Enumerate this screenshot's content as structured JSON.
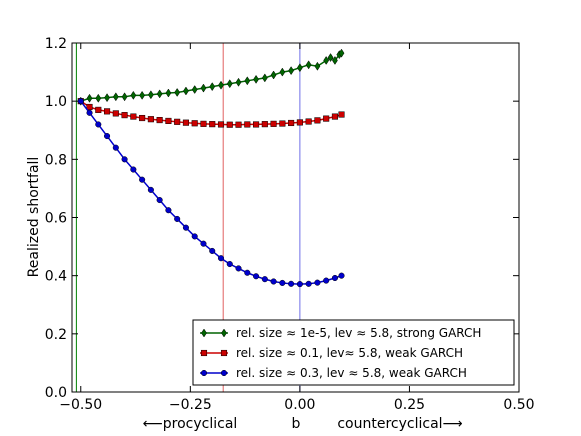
{
  "chart_data": {
    "type": "line",
    "title": "",
    "ylabel": "Realized shortfall",
    "xlabel_left": "⟵procyclical",
    "xlabel_center": "b",
    "xlabel_right": "countercyclical⟶",
    "xlim": [
      -0.52,
      0.5
    ],
    "ylim": [
      0.0,
      1.2
    ],
    "xticks": [
      -0.5,
      -0.25,
      0.0,
      0.25,
      0.5
    ],
    "xtick_labels": [
      "−0.50",
      "−0.25",
      "0.00",
      "0.25",
      "0.50"
    ],
    "yticks": [
      0.0,
      0.2,
      0.4,
      0.6,
      0.8,
      1.0,
      1.2
    ],
    "ytick_labels": [
      "0.0",
      "0.2",
      "0.4",
      "0.6",
      "0.8",
      "1.0",
      "1.2"
    ],
    "vlines": [
      {
        "x": -0.51,
        "color": "#008000"
      },
      {
        "x": -0.175,
        "color": "#e06060"
      },
      {
        "x": 0.0,
        "color": "#6f6fe8"
      }
    ],
    "legend_position": "lower-right",
    "series": [
      {
        "name": "rel. size ≈ 1e-5, lev ≈ 5.8, strong GARCH",
        "color": "#006400",
        "marker": "diamond",
        "points": [
          [
            -0.5,
            1.0
          ],
          [
            -0.48,
            1.01
          ],
          [
            -0.46,
            1.01
          ],
          [
            -0.44,
            1.012
          ],
          [
            -0.42,
            1.015
          ],
          [
            -0.4,
            1.015
          ],
          [
            -0.38,
            1.02
          ],
          [
            -0.36,
            1.02
          ],
          [
            -0.34,
            1.022
          ],
          [
            -0.32,
            1.025
          ],
          [
            -0.3,
            1.028
          ],
          [
            -0.28,
            1.03
          ],
          [
            -0.26,
            1.035
          ],
          [
            -0.24,
            1.04
          ],
          [
            -0.22,
            1.045
          ],
          [
            -0.2,
            1.05
          ],
          [
            -0.18,
            1.055
          ],
          [
            -0.16,
            1.06
          ],
          [
            -0.14,
            1.065
          ],
          [
            -0.12,
            1.07
          ],
          [
            -0.1,
            1.075
          ],
          [
            -0.08,
            1.08
          ],
          [
            -0.06,
            1.09
          ],
          [
            -0.04,
            1.1
          ],
          [
            -0.02,
            1.105
          ],
          [
            0.0,
            1.115
          ],
          [
            0.02,
            1.125
          ],
          [
            0.04,
            1.12
          ],
          [
            0.06,
            1.14
          ],
          [
            0.07,
            1.15
          ],
          [
            0.08,
            1.14
          ],
          [
            0.09,
            1.16
          ],
          [
            0.095,
            1.165
          ]
        ]
      },
      {
        "name": "rel. size ≈ 0.1, lev≈ 5.8, weak GARCH",
        "color": "#cc0000",
        "marker": "square",
        "points": [
          [
            -0.5,
            1.0
          ],
          [
            -0.48,
            0.98
          ],
          [
            -0.46,
            0.97
          ],
          [
            -0.44,
            0.965
          ],
          [
            -0.42,
            0.958
          ],
          [
            -0.4,
            0.952
          ],
          [
            -0.38,
            0.947
          ],
          [
            -0.36,
            0.942
          ],
          [
            -0.34,
            0.938
          ],
          [
            -0.32,
            0.935
          ],
          [
            -0.3,
            0.932
          ],
          [
            -0.28,
            0.929
          ],
          [
            -0.26,
            0.926
          ],
          [
            -0.24,
            0.924
          ],
          [
            -0.22,
            0.922
          ],
          [
            -0.2,
            0.921
          ],
          [
            -0.18,
            0.92
          ],
          [
            -0.16,
            0.919
          ],
          [
            -0.14,
            0.919
          ],
          [
            -0.12,
            0.92
          ],
          [
            -0.1,
            0.92
          ],
          [
            -0.08,
            0.921
          ],
          [
            -0.06,
            0.922
          ],
          [
            -0.04,
            0.923
          ],
          [
            -0.02,
            0.925
          ],
          [
            0.0,
            0.927
          ],
          [
            0.02,
            0.93
          ],
          [
            0.04,
            0.934
          ],
          [
            0.06,
            0.94
          ],
          [
            0.08,
            0.947
          ],
          [
            0.095,
            0.954
          ]
        ]
      },
      {
        "name": "rel. size ≈ 0.3, lev ≈ 5.8, weak GARCH",
        "color": "#0000cc",
        "marker": "circle",
        "points": [
          [
            -0.5,
            1.0
          ],
          [
            -0.48,
            0.96
          ],
          [
            -0.46,
            0.92
          ],
          [
            -0.44,
            0.88
          ],
          [
            -0.42,
            0.84
          ],
          [
            -0.4,
            0.8
          ],
          [
            -0.38,
            0.765
          ],
          [
            -0.36,
            0.73
          ],
          [
            -0.34,
            0.695
          ],
          [
            -0.32,
            0.66
          ],
          [
            -0.3,
            0.625
          ],
          [
            -0.28,
            0.595
          ],
          [
            -0.26,
            0.565
          ],
          [
            -0.24,
            0.535
          ],
          [
            -0.22,
            0.51
          ],
          [
            -0.2,
            0.485
          ],
          [
            -0.18,
            0.46
          ],
          [
            -0.16,
            0.44
          ],
          [
            -0.14,
            0.425
          ],
          [
            -0.12,
            0.41
          ],
          [
            -0.1,
            0.398
          ],
          [
            -0.08,
            0.388
          ],
          [
            -0.06,
            0.38
          ],
          [
            -0.04,
            0.375
          ],
          [
            -0.02,
            0.372
          ],
          [
            0.0,
            0.371
          ],
          [
            0.02,
            0.372
          ],
          [
            0.04,
            0.376
          ],
          [
            0.06,
            0.383
          ],
          [
            0.08,
            0.392
          ],
          [
            0.095,
            0.4
          ]
        ]
      }
    ]
  }
}
